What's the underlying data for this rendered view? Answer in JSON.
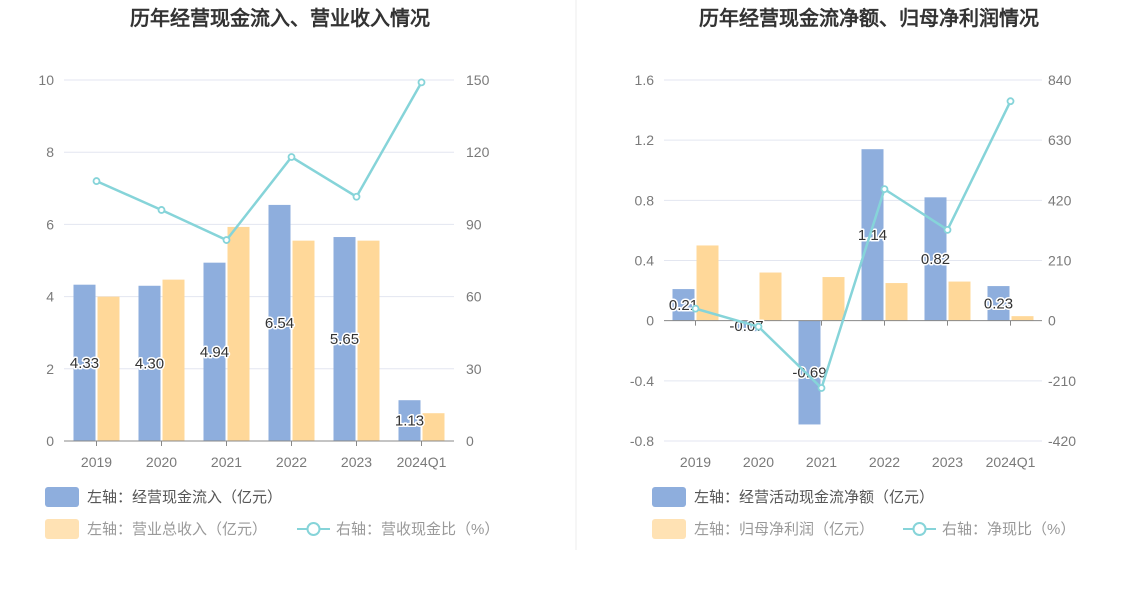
{
  "chart_data": [
    {
      "type": "bar",
      "title": "历年经营现金流入、营业收入情况",
      "categories": [
        "2019",
        "2020",
        "2021",
        "2022",
        "2023",
        "2024Q1"
      ],
      "left_ticks": [
        "0",
        "2",
        "4",
        "6",
        "8",
        "10"
      ],
      "right_ticks": [
        "0",
        "30",
        "60",
        "90",
        "120",
        "150"
      ],
      "ylim_left": [
        0,
        10
      ],
      "ylim_right": [
        0,
        150
      ],
      "series": [
        {
          "name": "左轴：经营现金流入（亿元）",
          "type": "bar",
          "axis": "left",
          "color": "#8eaedd",
          "values": [
            4.33,
            4.3,
            4.94,
            6.54,
            5.65,
            1.13
          ],
          "labels": [
            "4.33",
            "4.30",
            "4.94",
            "6.54",
            "5.65",
            "1.13"
          ]
        },
        {
          "name": "左轴：营业总收入（亿元）",
          "type": "bar",
          "axis": "left",
          "color": "#ffd899",
          "values": [
            4.0,
            4.47,
            5.93,
            5.55,
            5.55,
            0.77
          ]
        },
        {
          "name": "右轴：营收现金比（%）",
          "type": "line",
          "axis": "right",
          "color": "#86d4d9",
          "values": [
            108,
            96,
            83.5,
            118,
            101.5,
            149
          ]
        }
      ]
    },
    {
      "type": "bar",
      "title": "历年经营现金流净额、归母净利润情况",
      "categories": [
        "2019",
        "2020",
        "2021",
        "2022",
        "2023",
        "2024Q1"
      ],
      "left_ticks": [
        "-0.8",
        "-0.4",
        "0",
        "0.4",
        "0.8",
        "1.2",
        "1.6"
      ],
      "right_ticks": [
        "-420",
        "-210",
        "0",
        "210",
        "420",
        "630",
        "840"
      ],
      "ylim_left": [
        -0.8,
        1.6
      ],
      "ylim_right": [
        -420,
        840
      ],
      "series": [
        {
          "name": "左轴：经营活动现金流净额（亿元）",
          "type": "bar",
          "axis": "left",
          "color": "#8eaedd",
          "values": [
            0.21,
            -0.07,
            -0.69,
            1.14,
            0.82,
            0.23
          ],
          "labels": [
            "0.21",
            "-0.07",
            "-0.69",
            "1.14",
            "0.82",
            "0.23"
          ]
        },
        {
          "name": "左轴：归母净利润（亿元）",
          "type": "bar",
          "axis": "left",
          "color": "#ffd899",
          "values": [
            0.5,
            0.32,
            0.29,
            0.25,
            0.26,
            0.03
          ]
        },
        {
          "name": "右轴：净现比（%）",
          "type": "line",
          "axis": "right",
          "color": "#86d4d9",
          "values": [
            42,
            -21,
            -235,
            459,
            317,
            766
          ]
        }
      ]
    }
  ]
}
